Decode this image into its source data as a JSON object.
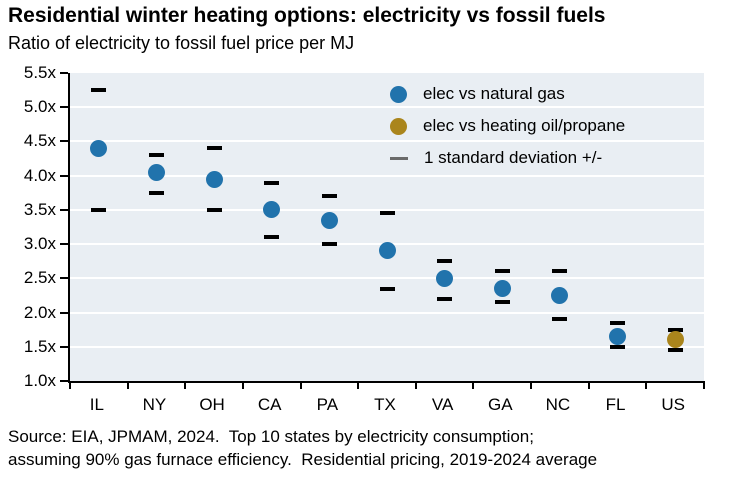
{
  "title": "Residential winter heating options: electricity vs fossil fuels",
  "subtitle": "Ratio of electricity to fossil fuel price per MJ",
  "source": {
    "line1": "Source: EIA, JPMAM, 2024.  Top 10 states by electricity consumption;",
    "line2": "assuming 90% gas furnace efficiency.  Residential pricing, 2019-2024 average"
  },
  "colors": {
    "natural_gas": "#2173ac",
    "heating_oil": "#aa851c",
    "whisker": "#000000",
    "legend_dash": "#6a6a6a",
    "plot_bg": "#e9eef3",
    "gridline": "#ffffff",
    "axis": "#000000",
    "text": "#000000"
  },
  "legend": {
    "items": [
      {
        "label": "elec vs natural gas",
        "marker": "circle",
        "color_key": "natural_gas"
      },
      {
        "label": "elec vs heating oil/propane",
        "marker": "circle",
        "color_key": "heating_oil"
      },
      {
        "label": "1 standard deviation +/-",
        "marker": "dash",
        "color_key": "legend_dash"
      }
    ]
  },
  "chart_data": {
    "type": "scatter",
    "title": "Residential winter heating options: electricity vs fossil fuels",
    "subtitle": "Ratio of electricity to fossil fuel price per MJ",
    "categories": [
      "IL",
      "NY",
      "OH",
      "CA",
      "PA",
      "TX",
      "VA",
      "GA",
      "NC",
      "FL",
      "US"
    ],
    "y_axis": {
      "min": 1.0,
      "max": 5.5,
      "step": 0.5,
      "suffix": "x",
      "tick_labels": [
        "5.5x",
        "5.0x",
        "4.5x",
        "4.0x",
        "3.5x",
        "3.0x",
        "2.5x",
        "2.0x",
        "1.5x",
        "1.0x"
      ]
    },
    "grid": "horizontal",
    "legend_position": "top-right-inside",
    "error_bar_meaning": "1 standard deviation +/-",
    "series": [
      {
        "name": "elec vs natural gas",
        "color_key": "natural_gas",
        "points": [
          {
            "category": "IL",
            "value": 4.4,
            "sd_low": 3.5,
            "sd_high": 5.25
          },
          {
            "category": "NY",
            "value": 4.05,
            "sd_low": 3.75,
            "sd_high": 4.3
          },
          {
            "category": "OH",
            "value": 3.95,
            "sd_low": 3.5,
            "sd_high": 4.4
          },
          {
            "category": "CA",
            "value": 3.5,
            "sd_low": 3.1,
            "sd_high": 3.9
          },
          {
            "category": "PA",
            "value": 3.35,
            "sd_low": 3.0,
            "sd_high": 3.7
          },
          {
            "category": "TX",
            "value": 2.9,
            "sd_low": 2.35,
            "sd_high": 3.45
          },
          {
            "category": "VA",
            "value": 2.5,
            "sd_low": 2.2,
            "sd_high": 2.75
          },
          {
            "category": "GA",
            "value": 2.35,
            "sd_low": 2.15,
            "sd_high": 2.6
          },
          {
            "category": "NC",
            "value": 2.25,
            "sd_low": 1.9,
            "sd_high": 2.6
          },
          {
            "category": "FL",
            "value": 1.65,
            "sd_low": 1.5,
            "sd_high": 1.85
          }
        ]
      },
      {
        "name": "elec vs heating oil/propane",
        "color_key": "heating_oil",
        "points": [
          {
            "category": "US",
            "value": 1.6,
            "sd_low": 1.45,
            "sd_high": 1.75
          }
        ]
      }
    ]
  }
}
